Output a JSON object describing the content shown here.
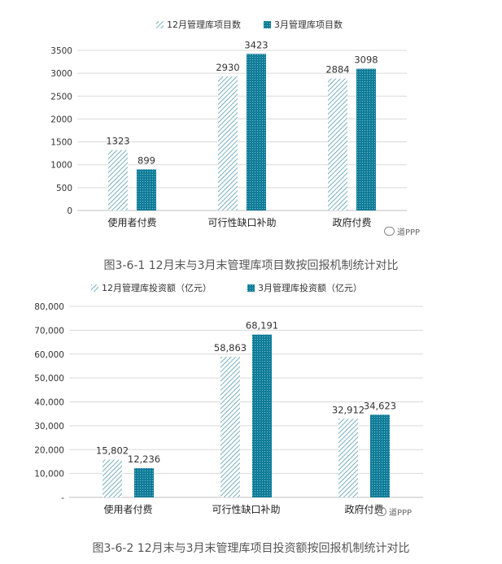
{
  "colors": {
    "dec": "#3f8ea5",
    "mar": "#0f7c98",
    "grid": "#d9d9d9",
    "axis": "#bfbfbf"
  },
  "captions": {
    "fig1": "图3-6-1  12月末与3月末管理库项目数按回报机制统计对比",
    "fig2": "图3-6-2  12月末与3月末管理库项目投资额按回报机制统计对比"
  },
  "watermark": "道PPP",
  "chart_data": [
    {
      "type": "bar",
      "categories": [
        "使用者付费",
        "可行性缺口补助",
        "政府付费"
      ],
      "series": [
        {
          "name": "12月管理库项目数",
          "values": [
            1323,
            2930,
            2884
          ],
          "labels": [
            "1323",
            "2930",
            "2884"
          ]
        },
        {
          "name": "3月管理库项目数",
          "values": [
            899,
            3423,
            3098
          ],
          "labels": [
            "899",
            "3423",
            "3098"
          ]
        }
      ],
      "yticks": [
        "0",
        "500",
        "1000",
        "1500",
        "2000",
        "2500",
        "3000",
        "3500"
      ],
      "ylim": [
        0,
        3500
      ],
      "grid": true,
      "legend": "top-center"
    },
    {
      "type": "bar",
      "categories": [
        "使用者付费",
        "可行性缺口补助",
        "政府付费"
      ],
      "series": [
        {
          "name": "12月管理库投资额（亿元）",
          "values": [
            15802,
            58863,
            32912
          ],
          "labels": [
            "15,802",
            "58,863",
            "32,912"
          ]
        },
        {
          "name": "3月管理库投资额（亿元）",
          "values": [
            12236,
            68191,
            34623
          ],
          "labels": [
            "12,236",
            "68,191",
            "34,623"
          ]
        }
      ],
      "yticks": [
        "-",
        "10,000",
        "20,000",
        "30,000",
        "40,000",
        "50,000",
        "60,000",
        "70,000",
        "80,000"
      ],
      "ylim": [
        0,
        80000
      ],
      "grid": true,
      "legend": "top-center"
    }
  ]
}
